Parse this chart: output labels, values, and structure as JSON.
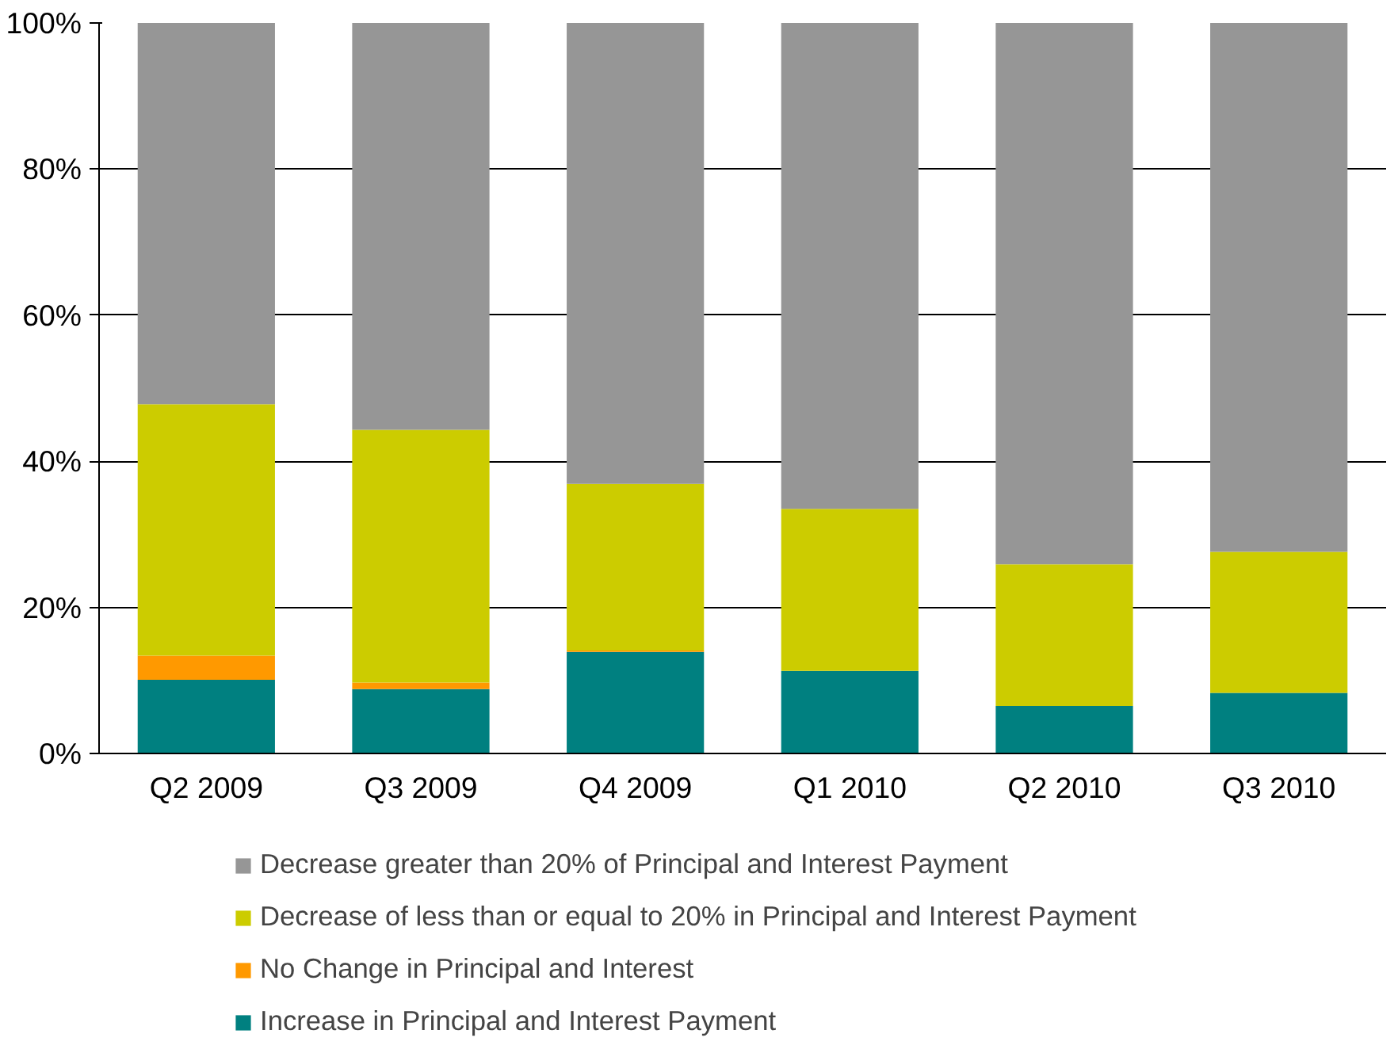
{
  "chart_data": {
    "type": "bar",
    "stacked": true,
    "categories": [
      "Q2 2009",
      "Q3 2009",
      "Q4 2009",
      "Q1 2010",
      "Q2 2010",
      "Q3 2010"
    ],
    "series": [
      {
        "name": "Increase in Principal and Interest Payment",
        "color": "#008080",
        "values": [
          10.1,
          8.8,
          13.9,
          11.3,
          6.5,
          8.3
        ]
      },
      {
        "name": "No Change in Principal and Interest",
        "color": "#ff9900",
        "values": [
          3.3,
          0.9,
          0.2,
          0,
          0,
          0
        ]
      },
      {
        "name": "Decrease of less than or equal to 20% in Principal and Interest Payment",
        "color": "#cccc00",
        "values": [
          34.4,
          34.6,
          22.8,
          22.2,
          19.4,
          19.3
        ]
      },
      {
        "name": "Decrease greater than 20% of Principal and Interest Payment",
        "color": "#969696",
        "values": [
          52.2,
          55.7,
          63.1,
          66.5,
          74.1,
          72.4
        ]
      }
    ],
    "ylim": [
      0,
      100
    ],
    "yticks": [
      {
        "value": 0,
        "label": "0%"
      },
      {
        "value": 20,
        "label": "20%"
      },
      {
        "value": 40,
        "label": "40%"
      },
      {
        "value": 60,
        "label": "60%"
      },
      {
        "value": 80,
        "label": "80%"
      },
      {
        "value": 100,
        "label": "100%"
      }
    ],
    "grid": "y",
    "legend": "bottom"
  }
}
